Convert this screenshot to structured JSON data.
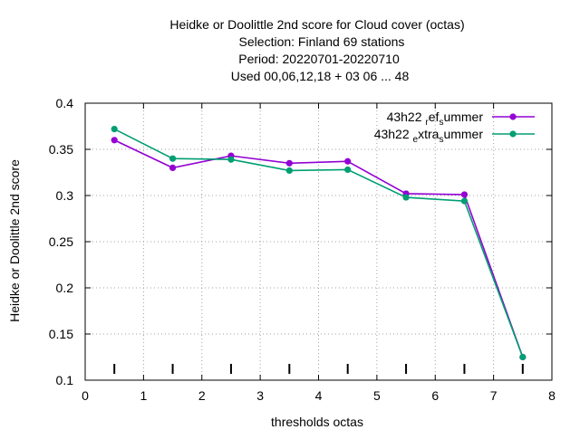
{
  "chart_data": {
    "type": "line",
    "title_lines": [
      "Heidke or Doolittle 2nd score  for Cloud cover (octas)",
      "Selection: Finland     69 stations",
      "Period: 20220701-20220710",
      "Used  00,06,12,18  + 03 06 ... 48"
    ],
    "xlabel": "thresholds octas",
    "ylabel": "Heidke or Doolittle 2nd score",
    "xlim": [
      0,
      8
    ],
    "ylim": [
      0.1,
      0.4
    ],
    "xticks": [
      "0",
      "1",
      "2",
      "3",
      "4",
      "5",
      "6",
      "7",
      "8"
    ],
    "yticks": [
      "0.1",
      "0.15",
      "0.2",
      "0.25",
      "0.3",
      "0.35",
      "0.4"
    ],
    "grid": true,
    "legend_position": "top-right",
    "threshold_markers_x": [
      0.5,
      1.5,
      2.5,
      3.5,
      4.5,
      5.5,
      6.5,
      7.5
    ],
    "x": [
      0.5,
      1.5,
      2.5,
      3.5,
      4.5,
      5.5,
      6.5,
      7.5
    ],
    "series": [
      {
        "name_base": "43h22",
        "name_parts": [
          [
            "ref",
            "sub"
          ],
          [
            "s",
            "sub"
          ],
          [
            "ummer",
            "base"
          ]
        ],
        "name_sub1": "r",
        "name_mid": "ef",
        "name_sub2": "s",
        "name_end": "ummer",
        "color": "#9400d3",
        "values": [
          0.36,
          0.33,
          0.343,
          0.335,
          0.337,
          0.302,
          0.301,
          0.125
        ]
      },
      {
        "name_base": "43h22",
        "name_sub1": "e",
        "name_mid": "xtra",
        "name_sub2": "s",
        "name_end": "ummer",
        "color": "#009e73",
        "values": [
          0.372,
          0.34,
          0.339,
          0.327,
          0.328,
          0.298,
          0.294,
          0.125
        ]
      }
    ]
  }
}
